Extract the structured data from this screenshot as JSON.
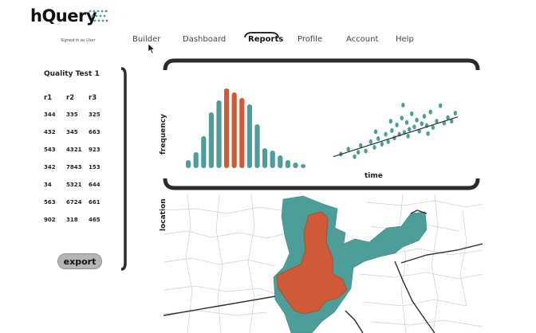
{
  "app": {
    "name": "hQuery",
    "signed_in": "Signed in as User"
  },
  "nav": [
    "Builder",
    "Dashboard",
    "Reports",
    "Profile",
    "Account",
    "Help"
  ],
  "nav_active": "Reports",
  "sidebar": {
    "title": "Quality Test 1",
    "headers": [
      "r1",
      "r2",
      "r3"
    ],
    "rows": [
      [
        "344",
        "335",
        "325"
      ],
      [
        "432",
        "345",
        "663"
      ],
      [
        "543",
        "4321",
        "923"
      ],
      [
        "342",
        "7843",
        "153"
      ],
      [
        "34",
        "5321",
        "644"
      ],
      [
        "563",
        "6724",
        "661"
      ],
      [
        "902",
        "318",
        "465"
      ]
    ],
    "export_label": "export"
  },
  "colors": {
    "teal": "#4d9e98",
    "red": "#d05a38",
    "dark": "#2b2b2b",
    "grey": "#b5b5b5"
  },
  "chart_data": [
    {
      "type": "bar",
      "ylabel": "frequency",
      "xlabel": "",
      "values": [
        1,
        2,
        4,
        7,
        8.5,
        10,
        9.5,
        8.8,
        8,
        5.5,
        2.5,
        2.2,
        1.6,
        1,
        0.7,
        0.5
      ],
      "highlight": [
        5,
        6,
        7
      ],
      "ylim": [
        0,
        10.5
      ],
      "grid": false
    },
    {
      "type": "scatter",
      "xlabel": "time",
      "ylabel": "",
      "xlim": [
        0,
        10
      ],
      "ylim": [
        0,
        10
      ],
      "trendline": {
        "start": [
          0,
          1.2
        ],
        "end": [
          10,
          7.6
        ]
      },
      "points": [
        [
          0.6,
          1.6
        ],
        [
          1.2,
          2.4
        ],
        [
          1.7,
          1.2
        ],
        [
          2.2,
          3.0
        ],
        [
          2.6,
          2.1
        ],
        [
          3.0,
          3.6
        ],
        [
          3.3,
          2.7
        ],
        [
          3.6,
          4.1
        ],
        [
          3.9,
          3.2
        ],
        [
          4.2,
          4.8
        ],
        [
          4.4,
          3.6
        ],
        [
          4.7,
          5.4
        ],
        [
          4.9,
          4.2
        ],
        [
          5.1,
          6.3
        ],
        [
          5.3,
          4.8
        ],
        [
          5.5,
          7.4
        ],
        [
          5.7,
          5.1
        ],
        [
          5.9,
          6.7
        ],
        [
          6.1,
          5.6
        ],
        [
          6.3,
          8.1
        ],
        [
          6.5,
          6.0
        ],
        [
          6.7,
          7.1
        ],
        [
          6.9,
          5.3
        ],
        [
          7.1,
          6.5
        ],
        [
          7.3,
          7.7
        ],
        [
          7.5,
          6.2
        ],
        [
          7.8,
          8.4
        ],
        [
          8.0,
          5.9
        ],
        [
          8.3,
          6.9
        ],
        [
          8.6,
          9.4
        ],
        [
          8.9,
          6.6
        ],
        [
          9.2,
          7.5
        ],
        [
          9.5,
          6.9
        ],
        [
          9.8,
          8.2
        ],
        [
          5.6,
          9.5
        ],
        [
          4.6,
          6.9
        ],
        [
          3.4,
          5.2
        ],
        [
          2.0,
          1.9
        ],
        [
          6.0,
          4.5
        ],
        [
          7.6,
          4.9
        ]
      ]
    }
  ],
  "map": {
    "label": "location"
  }
}
